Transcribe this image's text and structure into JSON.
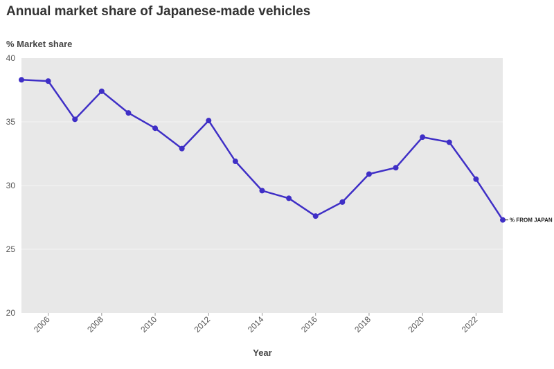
{
  "chart_data": {
    "type": "line",
    "title": "Annual market share of Japanese-made vehicles",
    "subtitle": "% Market share",
    "xlabel": "Year",
    "ylabel": "",
    "x": [
      2005,
      2006,
      2007,
      2008,
      2009,
      2010,
      2011,
      2012,
      2013,
      2014,
      2015,
      2016,
      2017,
      2018,
      2019,
      2020,
      2021,
      2022,
      2023
    ],
    "series": [
      {
        "name": "% FROM JAPAN",
        "color": "#3f2fc6",
        "values": [
          38.3,
          38.2,
          35.2,
          37.4,
          35.7,
          34.5,
          32.9,
          35.1,
          31.9,
          29.6,
          29.0,
          27.6,
          28.7,
          30.9,
          31.4,
          33.8,
          33.4,
          30.5,
          27.3
        ]
      }
    ],
    "xlim": [
      2005,
      2023
    ],
    "ylim": [
      20,
      40
    ],
    "x_ticks": [
      2006,
      2008,
      2010,
      2012,
      2014,
      2016,
      2018,
      2020,
      2022
    ],
    "y_ticks": [
      20,
      25,
      30,
      35,
      40
    ],
    "grid": true,
    "plot_background": "#e8e8e8",
    "legend": "inline label at end of line"
  }
}
